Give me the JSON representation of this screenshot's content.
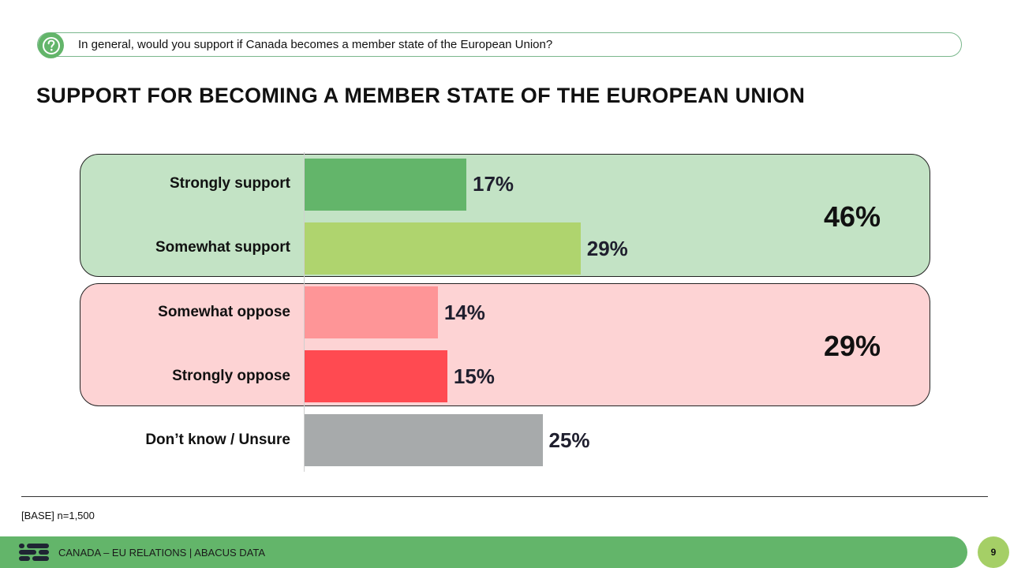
{
  "question": "In general, would you support if Canada becomes a member state of the European Union?",
  "title": "SUPPORT FOR BECOMING A MEMBER STATE OF THE EUROPEAN UNION",
  "net_support": "46%",
  "net_oppose": "29%",
  "base_note": "[BASE] n=1,500",
  "footer_text": "CANADA – EU RELATIONS | ABACUS DATA",
  "page_number": "9",
  "colors": {
    "green_bg": "#c3e3c5",
    "red_bg": "#fdd3d4",
    "footer_green": "#63b56a"
  },
  "chart_data": {
    "type": "bar",
    "orientation": "horizontal",
    "categories": [
      "Strongly support",
      "Somewhat support",
      "Somewhat oppose",
      "Strongly oppose",
      "Don’t know / Unsure"
    ],
    "values": [
      17,
      29,
      14,
      15,
      25
    ],
    "value_labels": [
      "17%",
      "29%",
      "14%",
      "15%",
      "25%"
    ],
    "colors": [
      "#63b56a",
      "#afd46e",
      "#fe9597",
      "#ff4a51",
      "#a7aaab"
    ],
    "title": "SUPPORT FOR BECOMING A MEMBER STATE OF THE EUROPEAN UNION",
    "xlim": [
      0,
      100
    ]
  }
}
